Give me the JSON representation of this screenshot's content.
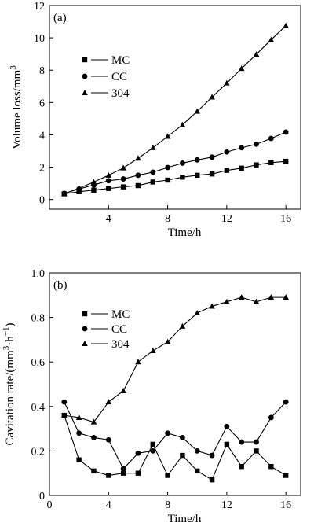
{
  "chart_data": [
    {
      "panel_label": "(a)",
      "type": "line",
      "xlabel": "Time/h",
      "ylabel": "Volume loss/mm",
      "ylabel_sup": "3",
      "xlim": [
        0,
        17
      ],
      "ylim": [
        -0.6,
        12
      ],
      "xticks": [
        4,
        8,
        12,
        16
      ],
      "yticks": [
        0,
        2,
        4,
        6,
        8,
        10,
        12
      ],
      "legend_position": "upper-left",
      "x": [
        1,
        2,
        3,
        4,
        5,
        6,
        7,
        8,
        9,
        10,
        11,
        12,
        13,
        14,
        15,
        16
      ],
      "series": [
        {
          "name": "MC",
          "marker": "square",
          "values": [
            0.35,
            0.48,
            0.58,
            0.68,
            0.78,
            0.86,
            1.08,
            1.2,
            1.38,
            1.5,
            1.58,
            1.8,
            1.94,
            2.14,
            2.28,
            2.36
          ]
        },
        {
          "name": "CC",
          "marker": "circle",
          "values": [
            0.38,
            0.65,
            0.9,
            1.16,
            1.27,
            1.5,
            1.69,
            1.98,
            2.25,
            2.45,
            2.62,
            2.94,
            3.2,
            3.42,
            3.78,
            4.17
          ]
        },
        {
          "name": "304",
          "marker": "triangle",
          "values": [
            0.35,
            0.7,
            1.08,
            1.5,
            1.95,
            2.55,
            3.2,
            3.9,
            4.62,
            5.45,
            6.33,
            7.2,
            8.1,
            8.98,
            9.88,
            10.75
          ]
        }
      ]
    },
    {
      "panel_label": "(b)",
      "type": "line",
      "xlabel": "Time/h",
      "ylabel": "Cavitation rate/(mm",
      "ylabel_sup1": "3",
      "ylabel_mid": "·h",
      "ylabel_sup2": "−1",
      "ylabel_end": ")",
      "xlim": [
        0,
        17
      ],
      "ylim": [
        0,
        1.0
      ],
      "xticks": [
        0,
        4,
        8,
        12,
        16
      ],
      "yticks": [
        0,
        0.2,
        0.4,
        0.6,
        0.8,
        1.0
      ],
      "ytick_labels": [
        "0",
        "0.2",
        "0.4",
        "0.6",
        "0.8",
        "1.0"
      ],
      "legend_position": "upper-left",
      "x": [
        1,
        2,
        3,
        4,
        5,
        6,
        7,
        8,
        9,
        10,
        11,
        12,
        13,
        14,
        15,
        16
      ],
      "series": [
        {
          "name": "MC",
          "marker": "square",
          "values": [
            0.36,
            0.16,
            0.11,
            0.09,
            0.1,
            0.1,
            0.23,
            0.09,
            0.18,
            0.11,
            0.07,
            0.23,
            0.13,
            0.2,
            0.13,
            0.09
          ]
        },
        {
          "name": "CC",
          "marker": "circle",
          "values": [
            0.42,
            0.28,
            0.26,
            0.25,
            0.12,
            0.19,
            0.2,
            0.28,
            0.26,
            0.2,
            0.18,
            0.31,
            0.24,
            0.24,
            0.35,
            0.42
          ]
        },
        {
          "name": "304",
          "marker": "triangle",
          "values": [
            0.36,
            0.35,
            0.33,
            0.42,
            0.47,
            0.6,
            0.65,
            0.69,
            0.76,
            0.82,
            0.85,
            0.87,
            0.89,
            0.87,
            0.89,
            0.89
          ]
        }
      ]
    }
  ]
}
